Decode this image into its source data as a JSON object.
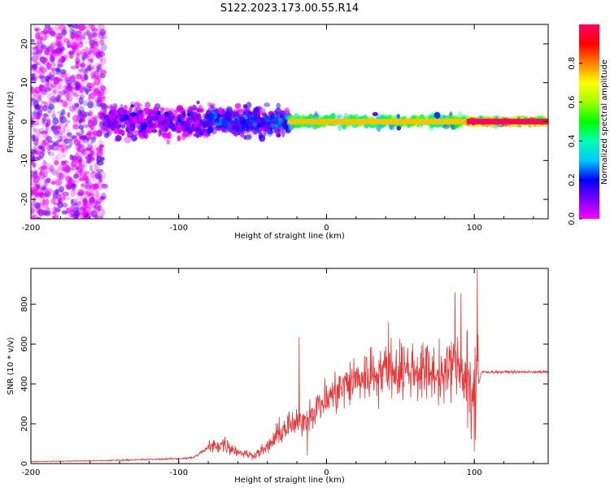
{
  "title": "S122.2023.173.00.55.R14",
  "chart_data": [
    {
      "type": "heatmap",
      "xlabel": "Height of straight line (km)",
      "ylabel": "Frequency (Hz)",
      "xlim": [
        -200,
        150
      ],
      "ylim": [
        -25,
        25
      ],
      "x_ticks": [
        -200,
        -100,
        0,
        100
      ],
      "y_ticks": [
        -20,
        -10,
        0,
        10,
        20
      ],
      "colorbar": {
        "label": "Normalized spectral amplitude",
        "range": [
          0,
          1
        ],
        "ticks": [
          "0.0",
          "0.2",
          "0.4",
          "0.6",
          "0.8"
        ],
        "stops": [
          "#ff00ff",
          "#7a00ff",
          "#0000ff",
          "#00c8ff",
          "#00ffb0",
          "#00ff00",
          "#a0ff00",
          "#ffff00",
          "#ff8000",
          "#ff0000",
          "#ff0066"
        ]
      },
      "regions": [
        {
          "x_from": -200,
          "x_to": -150,
          "freq_spread": 25,
          "amplitude": 0.05
        },
        {
          "x_from": -150,
          "x_to": -80,
          "freq_spread": 6,
          "amplitude": 0.1
        },
        {
          "x_from": -80,
          "x_to": -25,
          "freq_spread": 5,
          "amplitude": 0.2
        },
        {
          "x_from": -25,
          "x_to": 95,
          "freq_spread": 2,
          "amplitude": 0.6
        },
        {
          "x_from": 95,
          "x_to": 150,
          "freq_spread": 1,
          "amplitude": 0.9
        }
      ]
    },
    {
      "type": "line",
      "xlabel": "Height of straight line (km)",
      "ylabel": "SNR (10 * v/v)",
      "xlim": [
        -200,
        150
      ],
      "ylim": [
        0,
        980
      ],
      "x_ticks": [
        -200,
        -100,
        0,
        100
      ],
      "y_ticks": [
        0,
        200,
        400,
        600,
        800
      ],
      "color": "#ee3333",
      "trend": {
        "x": [
          -200,
          -150,
          -100,
          -90,
          -80,
          -70,
          -60,
          -50,
          -40,
          -30,
          -25,
          -20,
          -15,
          -10,
          0,
          10,
          20,
          30,
          40,
          50,
          60,
          70,
          80,
          85,
          90,
          95,
          100,
          103,
          105,
          120,
          150
        ],
        "y": [
          10,
          15,
          25,
          30,
          80,
          100,
          60,
          40,
          80,
          170,
          190,
          200,
          220,
          260,
          320,
          380,
          420,
          450,
          470,
          470,
          470,
          460,
          440,
          500,
          480,
          420,
          350,
          400,
          460,
          460,
          460
        ]
      },
      "spikes": [
        {
          "x": -18.5,
          "y": 635
        },
        {
          "x": -13,
          "y": 40
        },
        {
          "x": 42,
          "y": 710
        },
        {
          "x": 87,
          "y": 860
        },
        {
          "x": 91,
          "y": 855
        },
        {
          "x": 100,
          "y": 60
        },
        {
          "x": 102,
          "y": 975
        }
      ]
    }
  ]
}
